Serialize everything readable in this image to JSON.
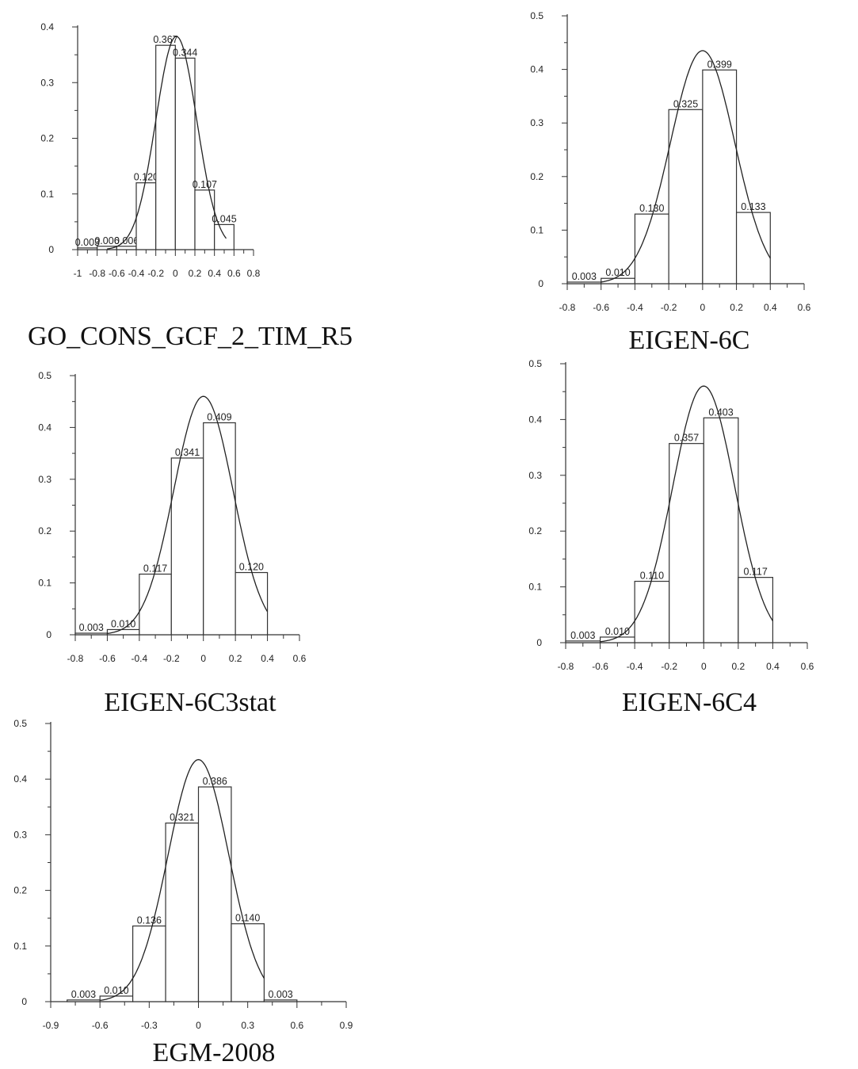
{
  "chart_data": [
    {
      "type": "bar",
      "title": "GO_CONS_GCF_2_TIM_R5",
      "bin_edges": [
        -1,
        -0.8,
        -0.6,
        -0.4,
        -0.2,
        0,
        0.2,
        0.4,
        0.6
      ],
      "values": [
        0.003,
        0.006,
        0.006,
        0.12,
        0.367,
        0.344,
        0.107,
        0.045
      ],
      "data_labels": [
        "0.003",
        "0.006",
        "0.006",
        "0.120",
        "0.367",
        "0.344",
        "0.107",
        "0.045"
      ],
      "curve": {
        "type": "normal",
        "peak": 0.383,
        "mean": 0.01,
        "sd": 0.21,
        "range": [
          -0.7,
          0.52
        ]
      },
      "xlim": [
        -1,
        0.8
      ],
      "ylim": [
        0,
        0.4
      ],
      "xticks": [
        "-1",
        "-0.8",
        "-0.6",
        "-0.4",
        "-0.2",
        "0",
        "0.2",
        "0.4",
        "0.6",
        "0.8"
      ],
      "yticks": [
        "0",
        "0.1",
        "0.2",
        "0.3",
        "0.4"
      ]
    },
    {
      "type": "bar",
      "title": "EIGEN-6C",
      "bin_edges": [
        -0.8,
        -0.6,
        -0.4,
        -0.2,
        0,
        0.2,
        0.4
      ],
      "values": [
        0.003,
        0.01,
        0.13,
        0.325,
        0.399,
        0.133
      ],
      "data_labels": [
        "0.003",
        "0.010",
        "0.130",
        "0.325",
        "0.399",
        "0.133"
      ],
      "curve": {
        "type": "normal",
        "peak": 0.435,
        "mean": 0.0,
        "sd": 0.19,
        "range": [
          -0.6,
          0.4
        ]
      },
      "xlim": [
        -0.8,
        0.6
      ],
      "ylim": [
        0,
        0.5
      ],
      "xticks": [
        "-0.8",
        "-0.6",
        "-0.4",
        "-0.2",
        "0",
        "0.2",
        "0.4",
        "0.6"
      ],
      "yticks": [
        "0",
        "0.1",
        "0.2",
        "0.3",
        "0.4",
        "0.5"
      ]
    },
    {
      "type": "bar",
      "title": "EIGEN-6C3stat",
      "bin_edges": [
        -0.8,
        -0.6,
        -0.4,
        -0.2,
        0,
        0.2,
        0.4
      ],
      "values": [
        0.003,
        0.01,
        0.117,
        0.341,
        0.409,
        0.12
      ],
      "data_labels": [
        "0.003",
        "0.010",
        "0.117",
        "0.341",
        "0.409",
        "0.120"
      ],
      "curve": {
        "type": "normal",
        "peak": 0.46,
        "mean": 0.0,
        "sd": 0.185,
        "range": [
          -0.6,
          0.4
        ]
      },
      "xlim": [
        -0.8,
        0.6
      ],
      "ylim": [
        0,
        0.5
      ],
      "xticks": [
        "-0.8",
        "-0.6",
        "-0.4",
        "-0.2",
        "0",
        "0.2",
        "0.4",
        "0.6"
      ],
      "yticks": [
        "0",
        "0.1",
        "0.2",
        "0.3",
        "0.4",
        "0.5"
      ]
    },
    {
      "type": "bar",
      "title": "EIGEN-6C4",
      "bin_edges": [
        -0.8,
        -0.6,
        -0.4,
        -0.2,
        0,
        0.2,
        0.4
      ],
      "values": [
        0.003,
        0.01,
        0.11,
        0.357,
        0.403,
        0.117
      ],
      "data_labels": [
        "0.003",
        "0.010",
        "0.110",
        "0.357",
        "0.403",
        "0.117"
      ],
      "curve": {
        "type": "normal",
        "peak": 0.46,
        "mean": 0.0,
        "sd": 0.18,
        "range": [
          -0.6,
          0.4
        ]
      },
      "xlim": [
        -0.8,
        0.6
      ],
      "ylim": [
        0,
        0.5
      ],
      "xticks": [
        "-0.8",
        "-0.6",
        "-0.4",
        "-0.2",
        "0",
        "0.2",
        "0.4",
        "0.6"
      ],
      "yticks": [
        "0",
        "0.1",
        "0.2",
        "0.3",
        "0.4",
        "0.5"
      ]
    },
    {
      "type": "bar",
      "title": "EGM-2008",
      "bin_edges": [
        -0.8,
        -0.6,
        -0.4,
        -0.2,
        0,
        0.2,
        0.4,
        0.6
      ],
      "values": [
        0.003,
        0.01,
        0.136,
        0.321,
        0.386,
        0.14,
        0.003
      ],
      "data_labels": [
        "0.003",
        "0.010",
        "0.136",
        "0.321",
        "0.386",
        "0.140",
        "0.003"
      ],
      "curve": {
        "type": "normal",
        "peak": 0.435,
        "mean": 0.0,
        "sd": 0.185,
        "range": [
          -0.6,
          0.4
        ]
      },
      "xlim": [
        -0.9,
        0.9
      ],
      "ylim": [
        0,
        0.5
      ],
      "xticks": [
        "-0.9",
        "-0.6",
        "-0.3",
        "0",
        "0.3",
        "0.6",
        "0.9"
      ],
      "yticks": [
        "0",
        "0.1",
        "0.2",
        "0.3",
        "0.4",
        "0.5"
      ]
    }
  ]
}
